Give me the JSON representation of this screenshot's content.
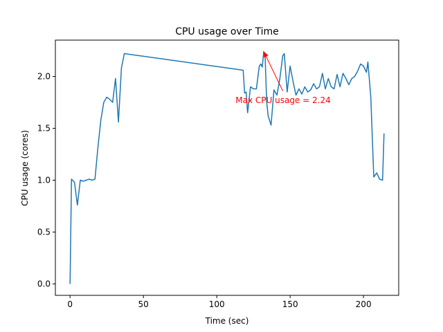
{
  "chart_data": {
    "type": "line",
    "title": "CPU usage over Time",
    "xlabel": "Time (sec)",
    "ylabel": "CPU usage (cores)",
    "xlim": [
      -10,
      224
    ],
    "ylim": [
      -0.11,
      2.35
    ],
    "xticks": [
      0,
      50,
      100,
      150,
      200
    ],
    "yticks": [
      0.0,
      0.5,
      1.0,
      1.5,
      2.0
    ],
    "xtick_labels": [
      "0",
      "50",
      "100",
      "150",
      "200"
    ],
    "ytick_labels": [
      "0.0",
      "0.5",
      "1.0",
      "1.5",
      "2.0"
    ],
    "grid": false,
    "series": [
      {
        "color": "#1f77b4",
        "x": [
          0,
          1,
          3,
          5,
          7,
          9,
          11,
          13,
          15,
          17,
          19,
          21,
          23,
          25,
          27,
          29,
          31,
          33,
          35,
          37,
          118,
          119,
          120,
          121,
          123,
          125,
          127,
          129,
          130,
          131,
          132,
          133,
          134,
          135,
          137,
          139,
          141,
          143,
          145,
          146,
          148,
          150,
          152,
          154,
          156,
          158,
          160,
          162,
          164,
          166,
          168,
          170,
          172,
          174,
          176,
          178,
          180,
          182,
          184,
          186,
          188,
          190,
          192,
          194,
          196,
          198,
          200,
          202,
          203,
          205,
          207,
          209,
          211,
          213,
          214
        ],
        "y": [
          0.0,
          1.01,
          0.98,
          0.76,
          1.0,
          0.99,
          1.0,
          1.01,
          1.0,
          1.01,
          1.32,
          1.58,
          1.75,
          1.8,
          1.78,
          1.75,
          1.98,
          1.56,
          2.08,
          2.22,
          2.06,
          1.84,
          1.85,
          1.65,
          1.9,
          1.88,
          1.88,
          2.1,
          2.12,
          2.09,
          2.24,
          2.18,
          1.76,
          1.62,
          1.53,
          1.87,
          1.82,
          1.98,
          2.2,
          2.22,
          1.85,
          2.1,
          1.95,
          1.82,
          1.88,
          1.83,
          1.9,
          1.85,
          1.87,
          1.93,
          1.88,
          1.9,
          2.03,
          1.88,
          1.98,
          1.9,
          1.88,
          2.02,
          1.9,
          2.03,
          1.98,
          1.92,
          1.98,
          2.0,
          2.05,
          2.12,
          2.1,
          2.04,
          2.14,
          1.8,
          1.03,
          1.07,
          1.01,
          1.0,
          1.45
        ]
      }
    ],
    "annotation": {
      "text": "Max CPU usage = 2.24",
      "color": "#ff0000",
      "point": [
        132,
        2.24
      ],
      "text_anchor_point": [
        145,
        1.86
      ]
    }
  }
}
